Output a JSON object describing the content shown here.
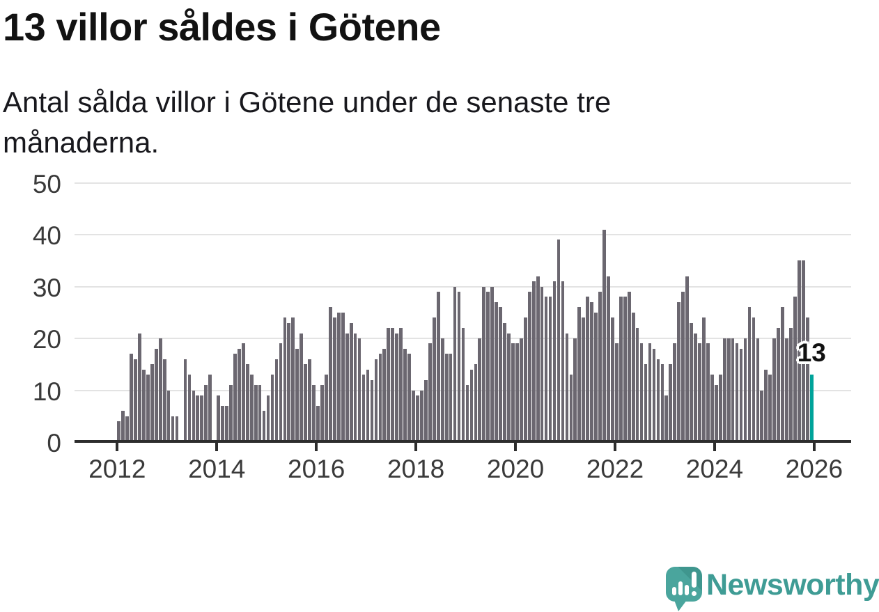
{
  "header": {
    "title": "13 villor såldes i Götene",
    "subtitle_lines": [
      "Antal sålda villor i Götene under de senaste tre",
      "månaderna."
    ]
  },
  "chart_data": {
    "type": "bar",
    "title": "13 villor såldes i Götene",
    "subtitle": "Antal sålda villor i Götene under de senaste tre månaderna.",
    "xlabel": "",
    "ylabel": "",
    "frequency": "monthly",
    "start_year": 2012,
    "start_month": 1,
    "values": [
      4,
      6,
      5,
      17,
      16,
      21,
      14,
      13,
      15,
      18,
      20,
      16,
      10,
      5,
      5,
      0,
      16,
      13,
      10,
      9,
      9,
      11,
      13,
      0,
      9,
      7,
      7,
      11,
      17,
      18,
      19,
      15,
      13,
      11,
      11,
      6,
      9,
      13,
      16,
      19,
      24,
      23,
      24,
      18,
      21,
      15,
      16,
      11,
      7,
      11,
      13,
      26,
      24,
      25,
      25,
      21,
      23,
      21,
      20,
      13,
      14,
      12,
      16,
      17,
      18,
      22,
      22,
      21,
      22,
      18,
      17,
      10,
      9,
      10,
      12,
      19,
      24,
      29,
      20,
      17,
      17,
      30,
      29,
      22,
      11,
      14,
      15,
      20,
      30,
      29,
      30,
      27,
      26,
      23,
      21,
      19,
      19,
      20,
      24,
      29,
      31,
      32,
      30,
      28,
      28,
      31,
      39,
      31,
      21,
      13,
      20,
      26,
      24,
      28,
      27,
      25,
      29,
      41,
      32,
      24,
      19,
      28,
      28,
      29,
      25,
      22,
      19,
      15,
      19,
      18,
      16,
      15,
      9,
      15,
      19,
      27,
      29,
      32,
      23,
      21,
      19,
      24,
      19,
      13,
      11,
      13,
      20,
      20,
      20,
      19,
      18,
      20,
      26,
      24,
      20,
      10,
      14,
      13,
      20,
      22,
      26,
      20,
      22,
      28,
      35,
      35,
      24,
      13
    ],
    "highlight": {
      "last_value": 13,
      "label": "13"
    },
    "y_ticks": [
      0,
      10,
      20,
      30,
      40,
      50
    ],
    "x_ticks": [
      2012,
      2014,
      2016,
      2018,
      2020,
      2022,
      2024,
      2026
    ],
    "ylim": [
      0,
      50
    ],
    "grid": true,
    "legend": "none",
    "colors": {
      "bar": "#6b6770",
      "highlight": "#00a39a",
      "grid": "#e3e3e3",
      "axis": "#2d2d2d",
      "tick_label": "#3a3a3a"
    }
  },
  "annotation": {
    "value_label": "13"
  },
  "footer": {
    "brand": "Newsworthy",
    "brand_color": "#3f9c95",
    "logo_icon": "newsworthy-speech-bubble-chart-icon"
  }
}
